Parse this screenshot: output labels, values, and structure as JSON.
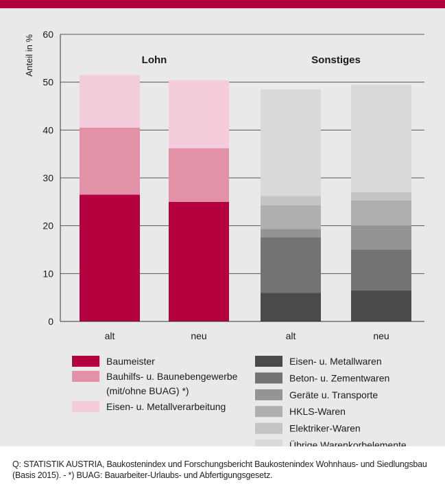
{
  "chart_data": {
    "type": "bar",
    "stacked": true,
    "ylabel": "Anteil in %",
    "ylim": [
      0,
      60
    ],
    "yticks": [
      0,
      10,
      20,
      30,
      40,
      50,
      60
    ],
    "grid": true,
    "groups": [
      {
        "label": "Lohn",
        "categories": [
          "alt",
          "neu"
        ]
      },
      {
        "label": "Sonstiges",
        "categories": [
          "alt",
          "neu"
        ]
      }
    ],
    "bars": [
      {
        "category": "alt",
        "group": "Lohn",
        "segments": [
          {
            "series": "Baumeister",
            "value": 26.5
          },
          {
            "series": "Bauhilfs- u. Baunebengewerbe (mit/ohne BUAG) *)",
            "value": 14.0
          },
          {
            "series": "Eisen- u. Metallverarbeitung",
            "value": 11.0
          }
        ]
      },
      {
        "category": "neu",
        "group": "Lohn",
        "segments": [
          {
            "series": "Baumeister",
            "value": 25.0
          },
          {
            "series": "Bauhilfs- u. Baunebengewerbe (mit/ohne BUAG) *)",
            "value": 11.2
          },
          {
            "series": "Eisen- u. Metallverarbeitung",
            "value": 14.2
          }
        ]
      },
      {
        "category": "alt",
        "group": "Sonstiges",
        "segments": [
          {
            "series": "Eisen- u. Metallwaren",
            "value": 6.0
          },
          {
            "series": "Beton- u. Zementwaren",
            "value": 11.6
          },
          {
            "series": "Geräte u. Transporte",
            "value": 1.7
          },
          {
            "series": "HKLS-Waren",
            "value": 5.0
          },
          {
            "series": "Elektriker-Waren",
            "value": 1.9
          },
          {
            "series": "Übrige Warenkorbelemente",
            "value": 22.3
          }
        ]
      },
      {
        "category": "neu",
        "group": "Sonstiges",
        "segments": [
          {
            "series": "Eisen- u. Metallwaren",
            "value": 6.5
          },
          {
            "series": "Beton- u. Zementwaren",
            "value": 8.5
          },
          {
            "series": "Geräte u. Transporte",
            "value": 5.0
          },
          {
            "series": "HKLS-Waren",
            "value": 5.3
          },
          {
            "series": "Elektriker-Waren",
            "value": 1.7
          },
          {
            "series": "Übrige Warenkorbelemente",
            "value": 22.5
          }
        ]
      }
    ],
    "legend": {
      "left": [
        {
          "name": "Baumeister",
          "lines": [
            "Baumeister"
          ],
          "color": "#b5003f"
        },
        {
          "name": "Bauhilfs- u. Baunebengewerbe (mit/ohne BUAG) *)",
          "lines": [
            "Bauhilfs- u. Baunebengewerbe",
            "(mit/ohne BUAG) *)"
          ],
          "color": "#e291a6"
        },
        {
          "name": "Eisen- u. Metallverarbeitung",
          "lines": [
            "Eisen- u. Metallverarbeitung"
          ],
          "color": "#f4ccdb"
        }
      ],
      "right": [
        {
          "name": "Eisen- u. Metallwaren",
          "lines": [
            "Eisen- u. Metallwaren"
          ],
          "color": "#4a4a4a"
        },
        {
          "name": "Beton- u. Zementwaren",
          "lines": [
            "Beton- u. Zementwaren"
          ],
          "color": "#737373"
        },
        {
          "name": "Geräte u. Transporte",
          "lines": [
            "Geräte u. Transporte"
          ],
          "color": "#949494"
        },
        {
          "name": "HKLS-Waren",
          "lines": [
            "HKLS-Waren"
          ],
          "color": "#afafaf"
        },
        {
          "name": "Elektriker-Waren",
          "lines": [
            "Elektriker-Waren"
          ],
          "color": "#c4c4c4"
        },
        {
          "name": "Übrige Warenkorbelemente",
          "lines": [
            "Übrige Warenkorbelemente"
          ],
          "color": "#d9d9d9"
        }
      ]
    }
  },
  "source_note": "Q: STATISTIK AUSTRIA, Baukostenindex und Forschungsbericht Baukostenindex Wohnhaus- und Siedlungsbau (Basis 2015). - *) BUAG: Bauarbeiter-Urlaubs- und Abfertigungsgesetz."
}
